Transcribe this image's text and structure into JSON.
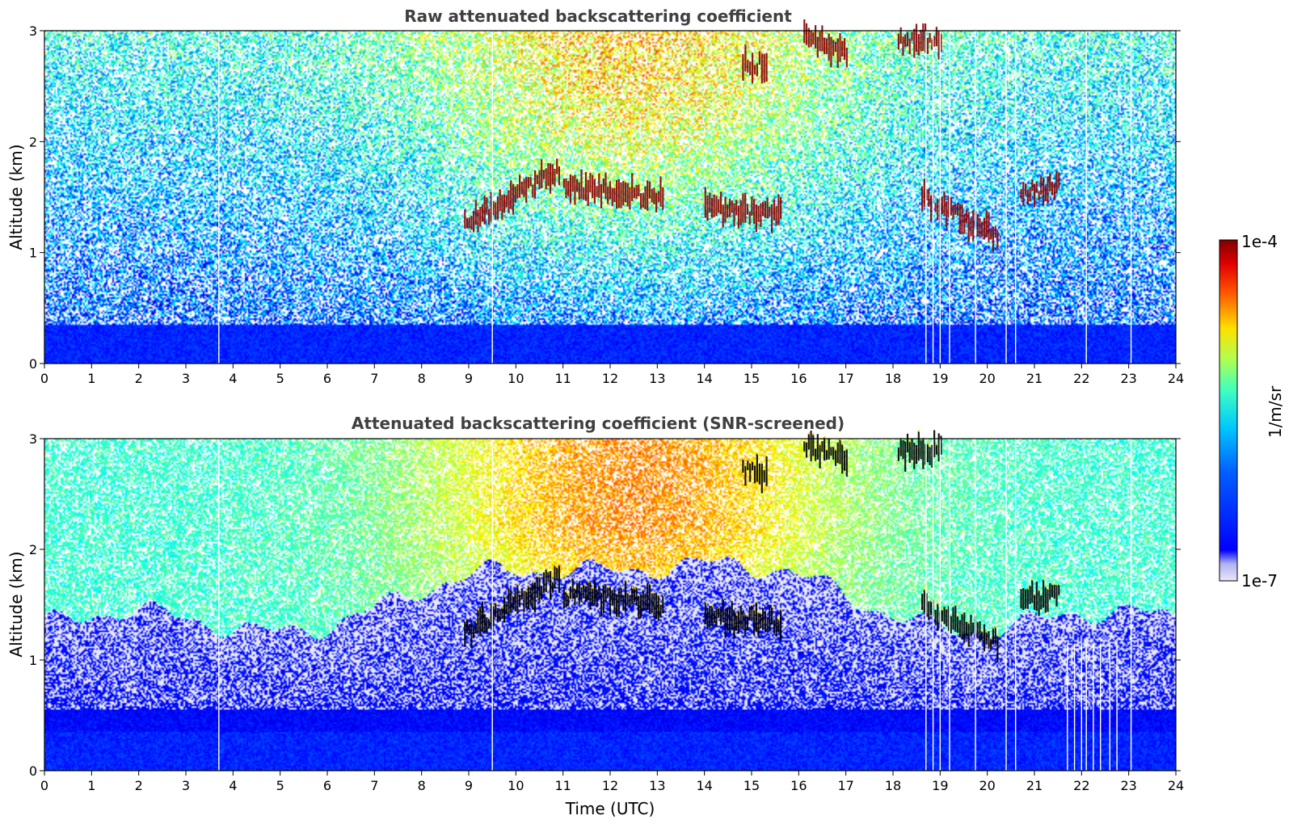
{
  "chart_data": [
    {
      "type": "heatmap",
      "title": "Raw attenuated backscattering coefficient",
      "xlabel": "",
      "ylabel": "Altitude (km)",
      "xlim": [
        0,
        24
      ],
      "ylim": [
        0,
        3
      ],
      "x_ticks": [
        "0",
        "1",
        "2",
        "3",
        "4",
        "5",
        "6",
        "7",
        "8",
        "9",
        "10",
        "11",
        "12",
        "13",
        "14",
        "15",
        "16",
        "17",
        "18",
        "19",
        "20",
        "21",
        "22",
        "23",
        "24"
      ],
      "y_ticks": [
        "0",
        "1",
        "2",
        "3"
      ],
      "screened": false,
      "features": [
        {
          "kind": "cloud",
          "x": [
            8.9,
            10.9
          ],
          "y_start": 1.25,
          "y_end": 1.75
        },
        {
          "kind": "cloud",
          "x": [
            11.0,
            13.1
          ],
          "y_start": 1.6,
          "y_end": 1.5
        },
        {
          "kind": "cloud",
          "x": [
            14.0,
            15.6
          ],
          "y_start": 1.4,
          "y_end": 1.35
        },
        {
          "kind": "cloud",
          "x": [
            18.6,
            20.2
          ],
          "y_start": 1.5,
          "y_end": 1.15
        },
        {
          "kind": "cloud",
          "x": [
            20.7,
            21.5
          ],
          "y_start": 1.55,
          "y_end": 1.6
        },
        {
          "kind": "cloud",
          "x": [
            16.1,
            17.0
          ],
          "y_start": 2.95,
          "y_end": 2.8
        },
        {
          "kind": "cloud",
          "x": [
            18.1,
            19.0
          ],
          "y_start": 2.9,
          "y_end": 2.9
        },
        {
          "kind": "cloud",
          "x": [
            14.8,
            15.3
          ],
          "y_start": 2.7,
          "y_end": 2.7
        }
      ],
      "data_gaps_utc": [
        3.7,
        9.5,
        18.7,
        18.85,
        19.0,
        19.2,
        19.75,
        20.4,
        20.6,
        22.1,
        23.05
      ]
    },
    {
      "type": "heatmap",
      "title": "Attenuated backscattering coefficient (SNR-screened)",
      "xlabel": "Time (UTC)",
      "ylabel": "Altitude (km)",
      "xlim": [
        0,
        24
      ],
      "ylim": [
        0,
        3
      ],
      "x_ticks": [
        "0",
        "1",
        "2",
        "3",
        "4",
        "5",
        "6",
        "7",
        "8",
        "9",
        "10",
        "11",
        "12",
        "13",
        "14",
        "15",
        "16",
        "17",
        "18",
        "19",
        "20",
        "21",
        "22",
        "23",
        "24"
      ],
      "y_ticks": [
        "0",
        "1",
        "2",
        "3"
      ],
      "screened": true,
      "features": [
        {
          "kind": "cloud",
          "x": [
            8.9,
            10.9
          ],
          "y_start": 1.25,
          "y_end": 1.75
        },
        {
          "kind": "cloud",
          "x": [
            11.0,
            13.1
          ],
          "y_start": 1.6,
          "y_end": 1.5
        },
        {
          "kind": "cloud",
          "x": [
            14.0,
            15.6
          ],
          "y_start": 1.4,
          "y_end": 1.35
        },
        {
          "kind": "cloud",
          "x": [
            18.6,
            20.2
          ],
          "y_start": 1.5,
          "y_end": 1.15
        },
        {
          "kind": "cloud",
          "x": [
            20.7,
            21.5
          ],
          "y_start": 1.55,
          "y_end": 1.6
        },
        {
          "kind": "cloud",
          "x": [
            16.1,
            17.0
          ],
          "y_start": 2.95,
          "y_end": 2.8
        },
        {
          "kind": "cloud",
          "x": [
            18.1,
            19.0
          ],
          "y_start": 2.9,
          "y_end": 2.9
        },
        {
          "kind": "cloud",
          "x": [
            14.8,
            15.3
          ],
          "y_start": 2.7,
          "y_end": 2.7
        }
      ],
      "data_gaps_utc": [
        3.7,
        9.5,
        18.7,
        18.85,
        19.0,
        19.2,
        19.75,
        20.4,
        20.6,
        21.7,
        21.85,
        22.0,
        22.1,
        22.25,
        22.4,
        22.6,
        22.75,
        23.05
      ]
    }
  ],
  "colorbar": {
    "label": "1/m/sr",
    "max_label": "1e-4",
    "min_label": "1e-7",
    "colormap": "jet",
    "colors": [
      "#e8e8fa",
      "#0000ff",
      "#00bfff",
      "#7fff7f",
      "#ffd700",
      "#ff4500",
      "#800000"
    ]
  }
}
